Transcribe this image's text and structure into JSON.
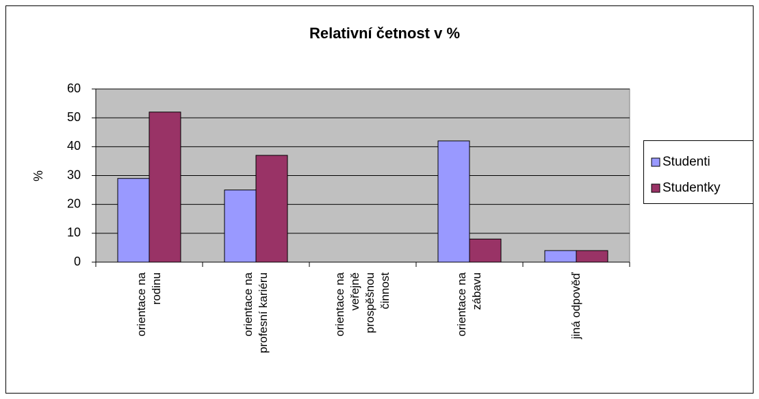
{
  "chart_data": {
    "type": "bar",
    "title": "Relativní četnost v %",
    "y_label": "%",
    "categories": [
      "orientace na rodinu",
      "orientace na profesní kariéru",
      "orientace na veřejně prospěšnou činnost",
      "orientace na zábavu",
      "jiná odpověď"
    ],
    "series": [
      {
        "name": "Studenti",
        "color": "#9999ff",
        "values": [
          29,
          25,
          0,
          42,
          4
        ]
      },
      {
        "name": "Studentky",
        "color": "#993366",
        "values": [
          52,
          37,
          0,
          8,
          4
        ]
      }
    ],
    "ylim": [
      0,
      60
    ],
    "yticks": [
      0,
      10,
      20,
      30,
      40,
      50,
      60
    ],
    "grid": true,
    "legend": "right"
  }
}
